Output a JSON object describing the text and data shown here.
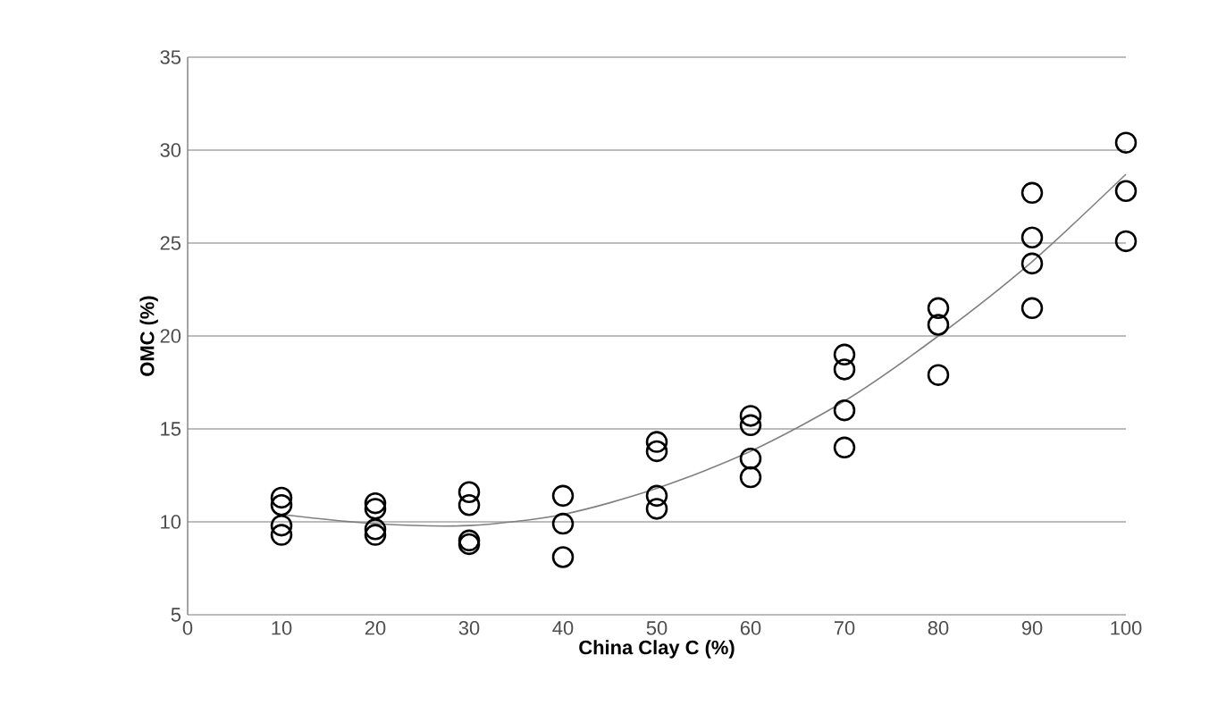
{
  "chart_data": {
    "type": "scatter",
    "xlabel": "China Clay C (%)",
    "ylabel": "OMC (%)",
    "xlim": [
      0,
      100
    ],
    "ylim": [
      5,
      35
    ],
    "xticks": [
      0,
      10,
      20,
      30,
      40,
      50,
      60,
      70,
      80,
      90,
      100
    ],
    "yticks": [
      5,
      10,
      15,
      20,
      25,
      30,
      35
    ],
    "grid": "y",
    "marker": "circle",
    "series": [
      {
        "color": "#000000",
        "x": [
          10,
          10,
          10,
          10,
          20,
          20,
          20,
          20,
          30,
          30,
          30,
          30,
          40,
          40,
          40,
          50,
          50,
          50,
          50,
          60,
          60,
          60,
          60,
          70,
          70,
          70,
          70,
          80,
          80,
          80,
          90,
          90,
          90,
          90,
          100,
          100,
          100
        ],
        "values": [
          11.3,
          10.9,
          9.8,
          9.3,
          11.0,
          10.7,
          9.6,
          9.3,
          11.6,
          10.9,
          9.0,
          8.8,
          11.4,
          9.9,
          8.1,
          14.3,
          13.8,
          11.4,
          10.7,
          15.7,
          15.2,
          13.4,
          12.4,
          19.0,
          18.2,
          16.0,
          14.0,
          21.5,
          20.6,
          17.9,
          27.7,
          25.3,
          23.9,
          21.5,
          30.4,
          27.8,
          25.1
        ]
      },
      {
        "type": "line",
        "color": "#808080",
        "marker": "none",
        "line_style": "solid",
        "x": [
          10,
          20,
          30,
          40,
          50,
          60,
          70,
          80,
          90,
          100
        ],
        "values": [
          10.4,
          9.9,
          9.8,
          10.4,
          11.8,
          13.8,
          16.5,
          20.0,
          24.0,
          28.7
        ]
      }
    ]
  }
}
